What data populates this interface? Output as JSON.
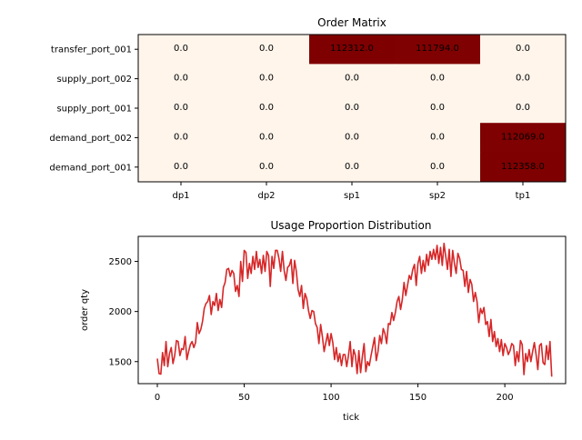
{
  "chart_data": [
    {
      "type": "heatmap",
      "title": "Order Matrix",
      "x_categories": [
        "dp1",
        "dp2",
        "sp1",
        "sp2",
        "tp1"
      ],
      "y_categories": [
        "transfer_port_001",
        "supply_port_002",
        "supply_port_001",
        "demand_port_002",
        "demand_port_001"
      ],
      "values": [
        [
          0.0,
          0.0,
          112312.0,
          111794.0,
          0.0
        ],
        [
          0.0,
          0.0,
          0.0,
          0.0,
          0.0
        ],
        [
          0.0,
          0.0,
          0.0,
          0.0,
          0.0
        ],
        [
          0.0,
          0.0,
          0.0,
          0.0,
          112069.0
        ],
        [
          0.0,
          0.0,
          0.0,
          0.0,
          112358.0
        ]
      ],
      "colormap": {
        "low": "#fff5eb",
        "high": "#7f0000"
      }
    },
    {
      "type": "line",
      "title": "Usage Proportion Distribution",
      "xlabel": "tick",
      "ylabel": "order qty",
      "xlim": [
        -11,
        235
      ],
      "ylim": [
        1280,
        2750
      ],
      "xticks": [
        0,
        50,
        100,
        150,
        200
      ],
      "yticks": [
        1500,
        2000,
        2500
      ],
      "series": [
        {
          "color": "#d62728",
          "y": [
            1530,
            1380,
            1375,
            1590,
            1460,
            1700,
            1450,
            1580,
            1640,
            1480,
            1560,
            1710,
            1700,
            1560,
            1630,
            1620,
            1750,
            1520,
            1600,
            1670,
            1700,
            1640,
            1690,
            1890,
            1780,
            1820,
            1900,
            2030,
            2080,
            2100,
            2160,
            1970,
            2100,
            2060,
            2180,
            2010,
            2120,
            2040,
            2240,
            2290,
            2420,
            2430,
            2350,
            2410,
            2380,
            2200,
            2260,
            2150,
            2500,
            2300,
            2610,
            2590,
            2330,
            2480,
            2380,
            2550,
            2420,
            2600,
            2440,
            2520,
            2380,
            2560,
            2400,
            2600,
            2560,
            2250,
            2550,
            2430,
            2610,
            2610,
            2530,
            2400,
            2600,
            2410,
            2310,
            2440,
            2460,
            2520,
            2280,
            2510,
            2400,
            2220,
            2150,
            2260,
            2030,
            2180,
            2130,
            2010,
            1930,
            2010,
            2000,
            1880,
            1840,
            1680,
            1870,
            1750,
            1600,
            1690,
            1780,
            1660,
            1780,
            1690,
            1520,
            1640,
            1500,
            1580,
            1460,
            1570,
            1570,
            1450,
            1560,
            1700,
            1450,
            1620,
            1560,
            1380,
            1610,
            1390,
            1550,
            1680,
            1400,
            1500,
            1460,
            1560,
            1650,
            1740,
            1510,
            1600,
            1760,
            1680,
            1830,
            1780,
            1680,
            1880,
            1870,
            1990,
            1910,
            1990,
            2100,
            2150,
            2020,
            2120,
            2290,
            2160,
            2260,
            2360,
            2320,
            2420,
            2470,
            2260,
            2480,
            2550,
            2380,
            2510,
            2400,
            2570,
            2460,
            2600,
            2520,
            2620,
            2520,
            2660,
            2480,
            2640,
            2460,
            2680,
            2550,
            2420,
            2620,
            2350,
            2610,
            2480,
            2380,
            2580,
            2530,
            2420,
            2410,
            2250,
            2400,
            2190,
            2320,
            2270,
            2100,
            2190,
            2100,
            1890,
            2030,
            1980,
            2040,
            1870,
            1900,
            1750,
            1920,
            1700,
            1800,
            1650,
            1730,
            1600,
            1720,
            1560,
            1680,
            1640,
            1570,
            1610,
            1680,
            1660,
            1460,
            1600,
            1500,
            1710,
            1670,
            1370,
            1580,
            1500,
            1620,
            1500,
            1600,
            1690,
            1570,
            1420,
            1660,
            1680,
            1490,
            1470,
            1660,
            1520,
            1700,
            1350
          ]
        }
      ]
    }
  ]
}
